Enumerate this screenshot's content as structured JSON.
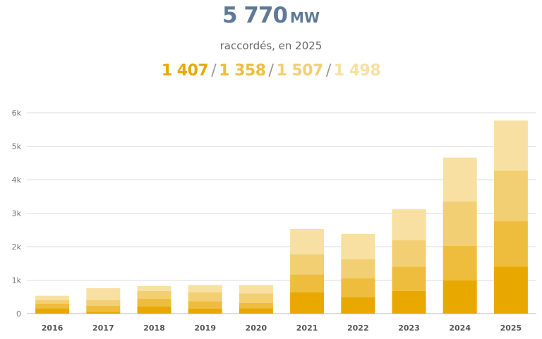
{
  "header": {
    "total_value": "5 770",
    "total_unit": "MW",
    "subtitle": "raccordés, en 2025",
    "parts": [
      "1 407",
      "1 358",
      "1 507",
      "1 498"
    ]
  },
  "chart_data": {
    "type": "bar",
    "stacked": true,
    "categories": [
      "2016",
      "2017",
      "2018",
      "2019",
      "2020",
      "2021",
      "2022",
      "2023",
      "2024",
      "2025"
    ],
    "series": [
      {
        "color": "#e8a800",
        "values": [
          161,
          56,
          218,
          147,
          161,
          632,
          484,
          681,
          989,
          1407
        ]
      },
      {
        "color": "#efbd3d",
        "values": [
          141,
          183,
          224,
          225,
          162,
          540,
          576,
          723,
          1039,
          1358
        ]
      },
      {
        "color": "#f2cf72",
        "values": [
          105,
          168,
          232,
          267,
          281,
          596,
          568,
          785,
          1326,
          1507
        ]
      },
      {
        "color": "#f7e0a2",
        "values": [
          126,
          351,
          147,
          217,
          252,
          758,
          751,
          934,
          1306,
          1498
        ]
      }
    ],
    "ylim": [
      0,
      6000
    ],
    "yticks": [
      0,
      1000,
      2000,
      3000,
      4000,
      5000,
      6000
    ],
    "ytick_labels": [
      "0",
      "1k",
      "2k",
      "3k",
      "4k",
      "5k",
      "6k"
    ],
    "grid": true,
    "legend": "none"
  }
}
